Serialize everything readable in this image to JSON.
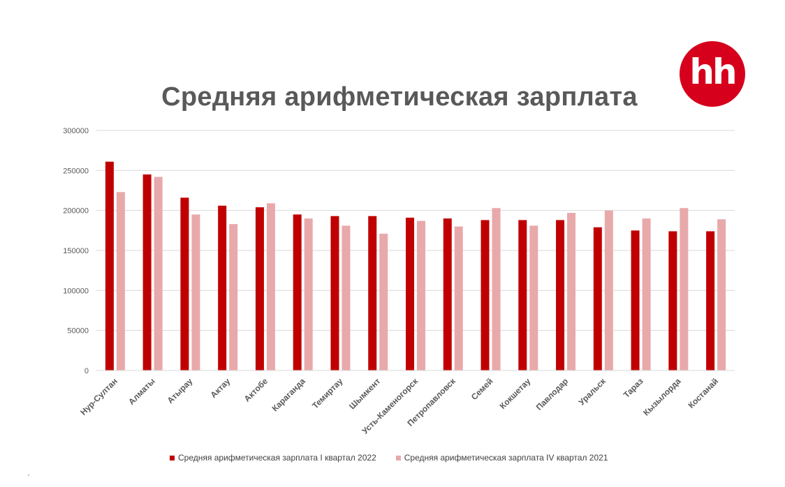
{
  "title": "Средняя арифметическая зарплата",
  "logo": "hh",
  "colors": {
    "series1": "#c00000",
    "series2": "#e8a9ab",
    "logo_bg": "#d6001c",
    "grid": "#d9d9d9"
  },
  "chart_data": {
    "type": "bar",
    "title": "Средняя арифметическая зарплата",
    "xlabel": "",
    "ylabel": "",
    "ylim": [
      0,
      300000
    ],
    "yticks": [
      "0",
      "50000",
      "100000",
      "150000",
      "200000",
      "250000",
      "300000"
    ],
    "grid": true,
    "legend_position": "bottom",
    "categories": [
      "Нур-Султан",
      "Алматы",
      "Атырау",
      "Актау",
      "Актобе",
      "Караганда",
      "Темиртау",
      "Шымкент",
      "Усть-Каменогорск",
      "Петропавловск",
      "Семей",
      "Кокшетау",
      "Павлодар",
      "Уральск",
      "Тараз",
      "Кызылорда",
      "Костанай"
    ],
    "series": [
      {
        "name": "Средняя арифметическая зарплата I квартал 2022",
        "values": [
          261000,
          245000,
          216000,
          206000,
          204000,
          195000,
          193000,
          193000,
          191000,
          190000,
          188000,
          188000,
          188000,
          179000,
          175000,
          174000,
          174000
        ]
      },
      {
        "name": "Средняя арифметическая зарплата IV квартал 2021",
        "values": [
          223000,
          242000,
          195000,
          183000,
          209000,
          190000,
          181000,
          171000,
          187000,
          180000,
          203000,
          181000,
          197000,
          200000,
          190000,
          203000,
          189000
        ]
      }
    ]
  }
}
